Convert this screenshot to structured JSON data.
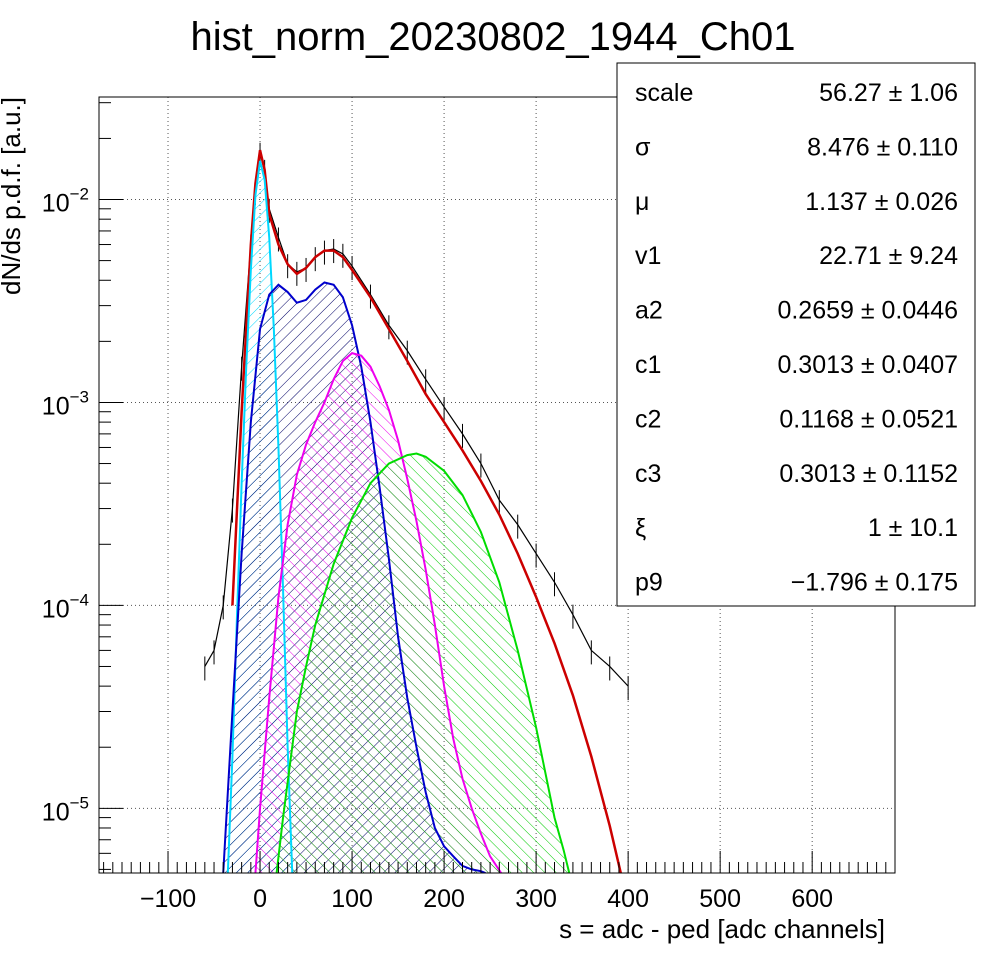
{
  "chart_data": {
    "type": "line",
    "title": "hist_norm_20230802_1944_Ch01",
    "xlabel": "s = adc - ped [adc channels]",
    "ylabel": "dN/ds p.d.f. [a.u.]",
    "yscale": "log",
    "xlim": [
      -175,
      690
    ],
    "ylim": [
      4.8e-06,
      0.032
    ],
    "grid": true,
    "x_ticks": [
      -100,
      0,
      100,
      200,
      300,
      400,
      500,
      600
    ],
    "x_tick_labels": [
      "−100",
      "0",
      "100",
      "200",
      "300",
      "400",
      "500",
      "600"
    ],
    "y_ticks": [
      0.01,
      0.001,
      0.0001,
      1e-05
    ],
    "y_tick_labels": [
      {
        "base": "10",
        "exp": "−2"
      },
      {
        "base": "10",
        "exp": "−3"
      },
      {
        "base": "10",
        "exp": "−4"
      },
      {
        "base": "10",
        "exp": "−5"
      }
    ],
    "series": [
      {
        "color": "#000000",
        "style": "histogram",
        "x": [
          -60,
          -50,
          -40,
          -30,
          -20,
          -10,
          -5,
          0,
          5,
          10,
          20,
          30,
          40,
          50,
          60,
          70,
          80,
          90,
          100,
          120,
          140,
          160,
          180,
          200,
          220,
          240,
          260,
          280,
          300,
          320,
          340,
          360,
          380,
          400
        ],
        "y": [
          5e-05,
          6e-05,
          0.0001,
          0.0003,
          0.0015,
          0.006,
          0.011,
          0.017,
          0.014,
          0.009,
          0.0065,
          0.0048,
          0.0044,
          0.0046,
          0.0052,
          0.0056,
          0.0057,
          0.0054,
          0.0047,
          0.0034,
          0.0024,
          0.0018,
          0.0013,
          0.00095,
          0.0007,
          0.0005,
          0.00033,
          0.00025,
          0.00018,
          0.00013,
          9e-05,
          6e-05,
          5e-05,
          4e-05
        ]
      },
      {
        "color": "#cc0000",
        "x": [
          -30,
          -20,
          -10,
          -5,
          0,
          5,
          10,
          20,
          30,
          40,
          50,
          60,
          70,
          80,
          90,
          100,
          120,
          140,
          160,
          180,
          200,
          220,
          240,
          260,
          280,
          300,
          320,
          340,
          360,
          380,
          392
        ],
        "y": [
          0.0001,
          0.0009,
          0.006,
          0.012,
          0.0175,
          0.014,
          0.0085,
          0.006,
          0.0048,
          0.0043,
          0.0046,
          0.0052,
          0.0056,
          0.0056,
          0.0052,
          0.0045,
          0.0033,
          0.0023,
          0.0016,
          0.0011,
          0.0008,
          0.00058,
          0.00041,
          0.00028,
          0.00018,
          0.00011,
          6.5e-05,
          3.6e-05,
          1.8e-05,
          8.2e-06,
          4.8e-06
        ]
      },
      {
        "color": "#00d8ff",
        "fill": true,
        "x": [
          -35,
          -30,
          -25,
          -20,
          -15,
          -10,
          -5,
          0,
          5,
          10,
          15,
          20,
          25,
          30,
          35
        ],
        "y": [
          4.8e-06,
          1.8e-05,
          9e-05,
          0.0004,
          0.0015,
          0.0045,
          0.0105,
          0.0155,
          0.0125,
          0.0065,
          0.0023,
          0.0006,
          0.00012,
          2e-05,
          4.8e-06
        ]
      },
      {
        "color": "#0000cc",
        "fill": true,
        "x": [
          -40,
          -30,
          -20,
          -10,
          0,
          10,
          20,
          30,
          40,
          50,
          60,
          70,
          80,
          90,
          100,
          110,
          120,
          130,
          140,
          150,
          160,
          170,
          180,
          190,
          200,
          210,
          220,
          230,
          240,
          245
        ],
        "y": [
          4.8e-06,
          3e-05,
          0.00018,
          0.0008,
          0.0023,
          0.0034,
          0.0038,
          0.0035,
          0.0031,
          0.0032,
          0.0036,
          0.0039,
          0.0038,
          0.0033,
          0.0024,
          0.0015,
          0.0008,
          0.00038,
          0.00017,
          7e-05,
          3.5e-05,
          2e-05,
          1.2e-05,
          8e-06,
          6.5e-06,
          5.8e-06,
          5.2e-06,
          5e-06,
          4.9e-06,
          4.8e-06
        ]
      },
      {
        "color": "#ee00ee",
        "fill": true,
        "x": [
          -5,
          0,
          10,
          20,
          30,
          40,
          50,
          60,
          70,
          80,
          90,
          100,
          110,
          120,
          130,
          140,
          150,
          160,
          170,
          180,
          190,
          200,
          210,
          220,
          230,
          240,
          250,
          262
        ],
        "y": [
          4.8e-06,
          1e-05,
          3.5e-05,
          0.00011,
          0.00025,
          0.00044,
          0.00062,
          0.0008,
          0.001,
          0.0013,
          0.0016,
          0.00175,
          0.0017,
          0.0015,
          0.0012,
          0.00092,
          0.00065,
          0.00042,
          0.00026,
          0.00015,
          8e-05,
          4e-05,
          2.2e-05,
          1.4e-05,
          1e-05,
          7.5e-06,
          5.8e-06,
          4.8e-06
        ]
      },
      {
        "color": "#00dd00",
        "fill": true,
        "x": [
          18,
          25,
          40,
          50,
          60,
          80,
          100,
          120,
          140,
          160,
          170,
          180,
          200,
          220,
          240,
          260,
          280,
          300,
          310,
          320,
          330,
          336
        ],
        "y": [
          4.8e-06,
          9e-06,
          3e-05,
          5e-05,
          8e-05,
          0.00016,
          0.00027,
          0.0004,
          0.0005,
          0.00055,
          0.00056,
          0.00054,
          0.00046,
          0.00035,
          0.00023,
          0.00013,
          6e-05,
          2.5e-05,
          1.5e-05,
          9e-06,
          6.2e-06,
          4.8e-06
        ]
      }
    ]
  },
  "stats": [
    {
      "name": "scale",
      "value": "56.27 ± 1.06"
    },
    {
      "name": "σ",
      "value": "8.476 ± 0.110"
    },
    {
      "name": "μ",
      "value": "1.137 ± 0.026"
    },
    {
      "name": "v1",
      "value": "22.71 ± 9.24"
    },
    {
      "name": "a2",
      "value": "0.2659 ± 0.0446"
    },
    {
      "name": "c1",
      "value": "0.3013 ± 0.0407"
    },
    {
      "name": "c2",
      "value": "0.1168 ± 0.0521"
    },
    {
      "name": "c3",
      "value": "0.3013 ± 0.1152"
    },
    {
      "name": "ξ",
      "value": "1 ± 10.1"
    },
    {
      "name": "p9",
      "value": "−1.796 ± 0.175"
    }
  ]
}
